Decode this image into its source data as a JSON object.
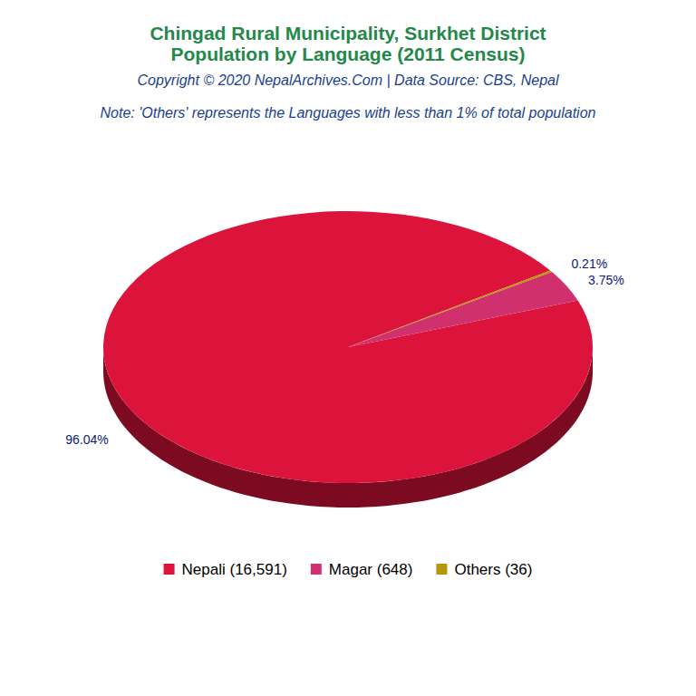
{
  "chart_data": {
    "type": "pie",
    "title": [
      "Chingad Rural Municipality, Surkhet District",
      "Population by Language (2011 Census)"
    ],
    "subtitle": "Copyright © 2020 NepalArchives.Com | Data Source: CBS, Nepal",
    "annotations": [
      "Note: 'Others' represents the Languages with less than 1% of total population"
    ],
    "categories": [
      "Nepali (16,591)",
      "Magar (648)",
      "Others (36)"
    ],
    "values": [
      96.04,
      3.75,
      0.21
    ],
    "value_labels": [
      "96.04%",
      "3.75%",
      "0.21%"
    ],
    "colors": [
      "#DC143C",
      "#D1306F",
      "#B8960C"
    ],
    "data_labels": true,
    "legend": "bottom"
  }
}
